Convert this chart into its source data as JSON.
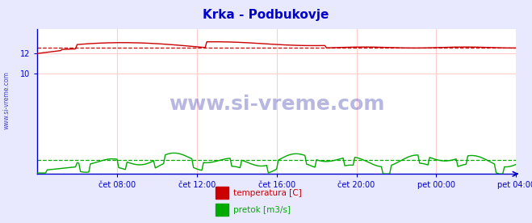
{
  "title": "Krka - Podbukovje",
  "bg_color": "#e8e8ff",
  "plot_bg_color": "#ffffff",
  "grid_color": "#ffcccc",
  "axis_color": "#0000cc",
  "title_color": "#0000cc",
  "tick_color": "#0000cc",
  "ylim": [
    0,
    14.444
  ],
  "xlim": [
    0,
    288
  ],
  "xtick_positions": [
    48,
    96,
    144,
    192,
    240,
    288
  ],
  "xtick_labels": [
    "čet 08:00",
    "čet 12:00",
    "čet 16:00",
    "čet 20:00",
    "pet 00:00",
    "pet 04:00"
  ],
  "ytick_positions": [
    10,
    12
  ],
  "ytick_labels": [
    "10",
    "12"
  ],
  "temp_color": "#cc0000",
  "flow_color": "#00aa00",
  "temp_avg": 12.6,
  "flow_avg": 1.4,
  "watermark": "www.si-vreme.com",
  "watermark_color": "#3333aa",
  "legend_items": [
    {
      "label": "temperatura [C]",
      "color": "#cc0000"
    },
    {
      "label": "pretok [m3/s]",
      "color": "#00aa00"
    }
  ]
}
